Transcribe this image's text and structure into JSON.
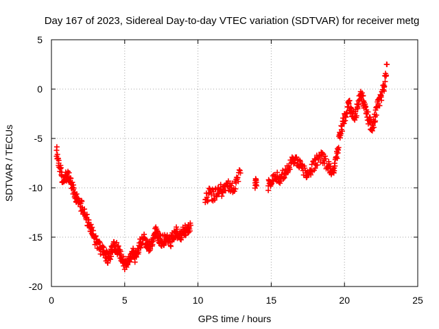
{
  "chart_data": {
    "type": "scatter",
    "title": "Day 167 of 2023, Sidereal Day-to-day VTEC variation (SDTVAR) for receiver metg",
    "xlabel": "GPS time / hours",
    "ylabel": "SDTVAR / TECUs",
    "xlim": [
      0,
      25
    ],
    "ylim": [
      -20,
      5
    ],
    "xticks": [
      0,
      5,
      10,
      15,
      20,
      25
    ],
    "yticks": [
      5,
      0,
      -5,
      -10,
      -15,
      -20
    ],
    "xtick_labels": [
      "0",
      "5",
      "10",
      "15",
      "20",
      "25"
    ],
    "ytick_labels": [
      "5",
      "0",
      "-5",
      "-10",
      "-15",
      "-20"
    ],
    "grid": true,
    "marker": "+",
    "color": "#ff0000",
    "series": [
      {
        "name": "SDTVAR",
        "x": [
          0.35,
          0.5,
          0.7,
          0.9,
          1.1,
          1.3,
          1.5,
          1.7,
          1.9,
          2.1,
          2.3,
          2.5,
          2.7,
          2.9,
          3.1,
          3.3,
          3.5,
          3.7,
          3.9,
          4.1,
          4.3,
          4.5,
          4.7,
          4.9,
          5.1,
          5.3,
          5.5,
          5.7,
          5.9,
          6.1,
          6.3,
          6.5,
          6.7,
          6.9,
          7.1,
          7.3,
          7.5,
          7.7,
          7.9,
          8.1,
          8.3,
          8.5,
          8.7,
          8.9,
          9.1,
          9.3,
          9.5,
          10.5,
          10.8,
          11.1,
          11.4,
          11.7,
          12.0,
          12.3,
          12.6,
          12.9,
          13.9,
          14.0,
          14.8,
          15.0,
          15.3,
          15.6,
          15.9,
          16.2,
          16.5,
          16.8,
          17.1,
          17.4,
          17.7,
          18.0,
          18.3,
          18.6,
          18.9,
          19.1,
          19.3,
          19.5,
          19.7,
          19.9,
          20.1,
          20.3,
          20.5,
          20.7,
          20.9,
          21.1,
          21.3,
          21.5,
          21.7,
          21.9,
          22.1,
          22.3,
          22.5,
          22.7,
          22.9
        ],
        "y": [
          -6.2,
          -7.5,
          -8.8,
          -9.2,
          -8.5,
          -9.5,
          -10.2,
          -11.0,
          -11.5,
          -12.0,
          -12.8,
          -13.5,
          -14.2,
          -15.0,
          -15.5,
          -16.0,
          -16.5,
          -16.8,
          -17.2,
          -16.5,
          -15.8,
          -16.2,
          -16.8,
          -17.5,
          -17.9,
          -17.2,
          -16.5,
          -17.0,
          -16.2,
          -15.5,
          -15.0,
          -15.8,
          -16.0,
          -15.2,
          -14.5,
          -15.0,
          -15.5,
          -15.2,
          -14.8,
          -15.5,
          -15.0,
          -14.5,
          -15.0,
          -14.8,
          -14.2,
          -14.5,
          -13.8,
          -11.2,
          -10.5,
          -10.8,
          -10.0,
          -10.5,
          -9.8,
          -10.2,
          -9.5,
          -8.5,
          -9.5,
          -9.8,
          -9.8,
          -9.5,
          -8.8,
          -9.0,
          -8.5,
          -7.8,
          -7.0,
          -7.5,
          -8.0,
          -8.5,
          -8.2,
          -7.5,
          -6.8,
          -7.2,
          -7.8,
          -8.5,
          -8.0,
          -6.5,
          -4.5,
          -3.5,
          -2.5,
          -1.5,
          -2.2,
          -2.8,
          -1.8,
          -0.5,
          -1.2,
          -2.5,
          -3.2,
          -4.0,
          -2.8,
          -1.5,
          -0.8,
          0.2,
          2.5
        ]
      }
    ]
  }
}
